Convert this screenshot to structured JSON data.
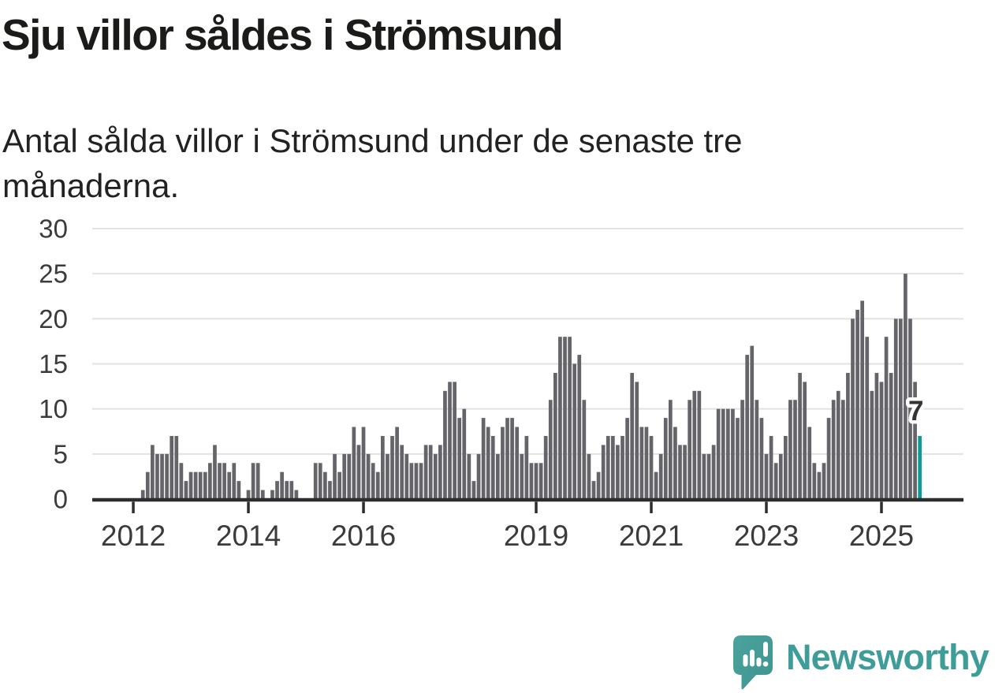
{
  "header": {
    "title": "Sju villor såldes i Strömsund",
    "subtitle_line1": "Antal sålda villor i Strömsund under de senaste tre",
    "subtitle_line2": "månaderna."
  },
  "chart_data": {
    "type": "bar",
    "title": "Sju villor såldes i Strömsund",
    "description": "Antal sålda villor i Strömsund under de senaste tre månaderna.",
    "x_start_month": "2011-04",
    "x_end_month": "2025-09",
    "values": [
      0,
      0,
      0,
      0,
      0,
      0,
      0,
      0,
      0,
      0,
      0,
      1,
      3,
      6,
      5,
      5,
      5,
      7,
      7,
      4,
      2,
      3,
      3,
      3,
      3,
      4,
      6,
      4,
      4,
      3,
      4,
      2,
      0,
      1,
      4,
      4,
      1,
      0,
      1,
      2,
      3,
      2,
      2,
      1,
      0,
      0,
      0,
      4,
      4,
      3,
      2,
      5,
      3,
      5,
      5,
      8,
      6,
      8,
      5,
      4,
      3,
      7,
      5,
      7,
      8,
      6,
      5,
      4,
      4,
      4,
      6,
      6,
      5,
      6,
      12,
      13,
      13,
      9,
      10,
      5,
      2,
      5,
      9,
      8,
      7,
      5,
      8,
      9,
      9,
      8,
      5,
      7,
      4,
      4,
      4,
      7,
      11,
      14,
      18,
      18,
      18,
      15,
      16,
      11,
      5,
      2,
      3,
      6,
      7,
      7,
      6,
      7,
      9,
      14,
      13,
      8,
      8,
      7,
      3,
      5,
      9,
      11,
      8,
      6,
      6,
      11,
      12,
      12,
      5,
      5,
      6,
      10,
      10,
      10,
      10,
      9,
      11,
      16,
      17,
      11,
      9,
      5,
      7,
      4,
      5,
      7,
      11,
      11,
      14,
      13,
      8,
      4,
      3,
      4,
      9,
      11,
      12,
      11,
      14,
      20,
      21,
      22,
      18,
      12,
      14,
      13,
      18,
      14,
      20,
      20,
      25,
      20,
      13,
      7
    ],
    "highlight_last_bar": true,
    "annotation": {
      "text": "7",
      "value": 7
    },
    "y_ticks": [
      0,
      5,
      10,
      15,
      20,
      25,
      30
    ],
    "ylim": [
      0,
      30
    ],
    "x_tick_years": [
      2012,
      2014,
      2016,
      2019,
      2021,
      2023,
      2025
    ],
    "grid": true,
    "legend": "none",
    "colors": {
      "bar": "#646469",
      "highlight": "#0c9a94",
      "axis": "#2d2d2d",
      "grid": "#e2e2e2",
      "tick_label": "#3b3b3b",
      "annotation_text": "#333333",
      "annotation_halo": "#ffffff"
    }
  },
  "footer": {
    "brand": "Newsworthy",
    "logo_teal": "#47a09b",
    "logo_teal_dark": "#3e948f"
  }
}
